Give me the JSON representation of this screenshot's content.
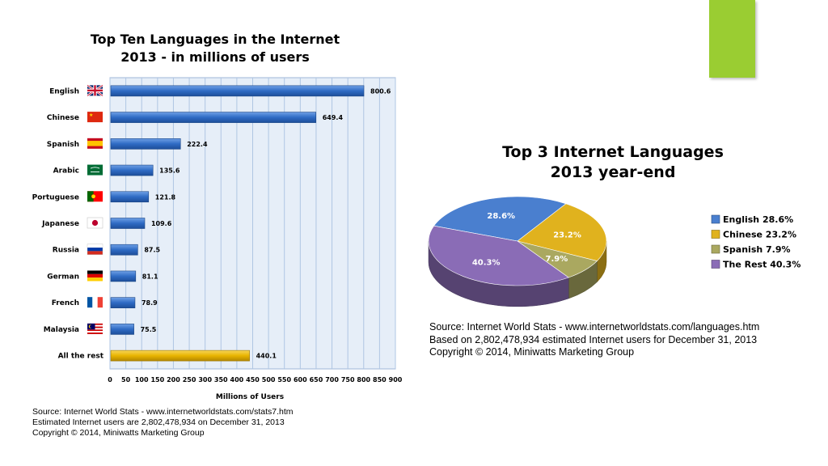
{
  "bar_chart": {
    "title_line1": "Top Ten Languages in the Internet",
    "title_line2": "2013 - in millions of users",
    "xlabel": "Millions of Users",
    "source_lines": [
      "Source: Internet World Stats - www.internetworldstats.com/stats7.htm",
      "Estimated Internet users are 2,802,478,934 on December 31, 2013",
      "Copyright ©  2014, Miniwatts Marketing Group"
    ]
  },
  "pie_chart": {
    "title_line1": "Top 3 Internet Languages",
    "title_line2": "2013 year-end",
    "source_lines": [
      "Source: Internet World Stats - www.internetworldstats.com/languages.htm",
      "Based on 2,802,478,934 estimated Internet users for December 31, 2013",
      "Copyright © 2014, Miniwatts Marketing Group"
    ]
  },
  "colors": {
    "accent": "#9ACD32",
    "bar_blue": "#2F6BC4",
    "bar_gold": "#E8B400",
    "grid": "#AFC6E3",
    "plot_bg": "#E6EEF8",
    "pie_english": "#4A7FCF",
    "pie_chinese": "#E0B21E",
    "pie_spanish": "#AAA860",
    "pie_rest": "#8A6CB6"
  },
  "chart_data": [
    {
      "type": "bar",
      "orientation": "horizontal",
      "title": "Top Ten Languages in the Internet 2013 - in millions of users",
      "xlabel": "Millions of Users",
      "ylabel": "",
      "categories": [
        "English",
        "Chinese",
        "Spanish",
        "Arabic",
        "Portuguese",
        "Japanese",
        "Russia",
        "German",
        "French",
        "Malaysia",
        "All the rest"
      ],
      "values": [
        800.6,
        649.4,
        222.4,
        135.6,
        121.8,
        109.6,
        87.5,
        81.1,
        78.9,
        75.5,
        440.1
      ],
      "value_labels": [
        "800.6",
        "649.4",
        "222.4",
        "135.6",
        "121.8",
        "109.6",
        "87.5",
        "81.1",
        "78.9",
        "75.5",
        "440.1"
      ],
      "icons": [
        "uk-flag-icon",
        "china-flag-icon",
        "spain-flag-icon",
        "saudi-flag-icon",
        "portugal-flag-icon",
        "japan-flag-icon",
        "russia-flag-icon",
        "germany-flag-icon",
        "france-flag-icon",
        "malaysia-flag-icon",
        ""
      ],
      "xlim": [
        0,
        900
      ],
      "xticks": [
        0,
        50,
        100,
        150,
        200,
        250,
        300,
        350,
        400,
        450,
        500,
        550,
        600,
        650,
        700,
        750,
        800,
        850,
        900
      ],
      "grid": true
    },
    {
      "type": "pie",
      "title": "Top 3 Internet Languages 2013 year-end",
      "labels": [
        "English",
        "Chinese",
        "Spanish",
        "The Rest"
      ],
      "values": [
        28.6,
        23.2,
        7.9,
        40.3
      ],
      "value_labels": [
        "28.6%",
        "23.2%",
        "7.9%",
        "40.3%"
      ],
      "legend_labels": [
        "English  28.6%",
        "Chinese  23.2%",
        "Spanish  7.9%",
        "The Rest  40.3%"
      ],
      "legend": "right",
      "style": "3d"
    }
  ]
}
